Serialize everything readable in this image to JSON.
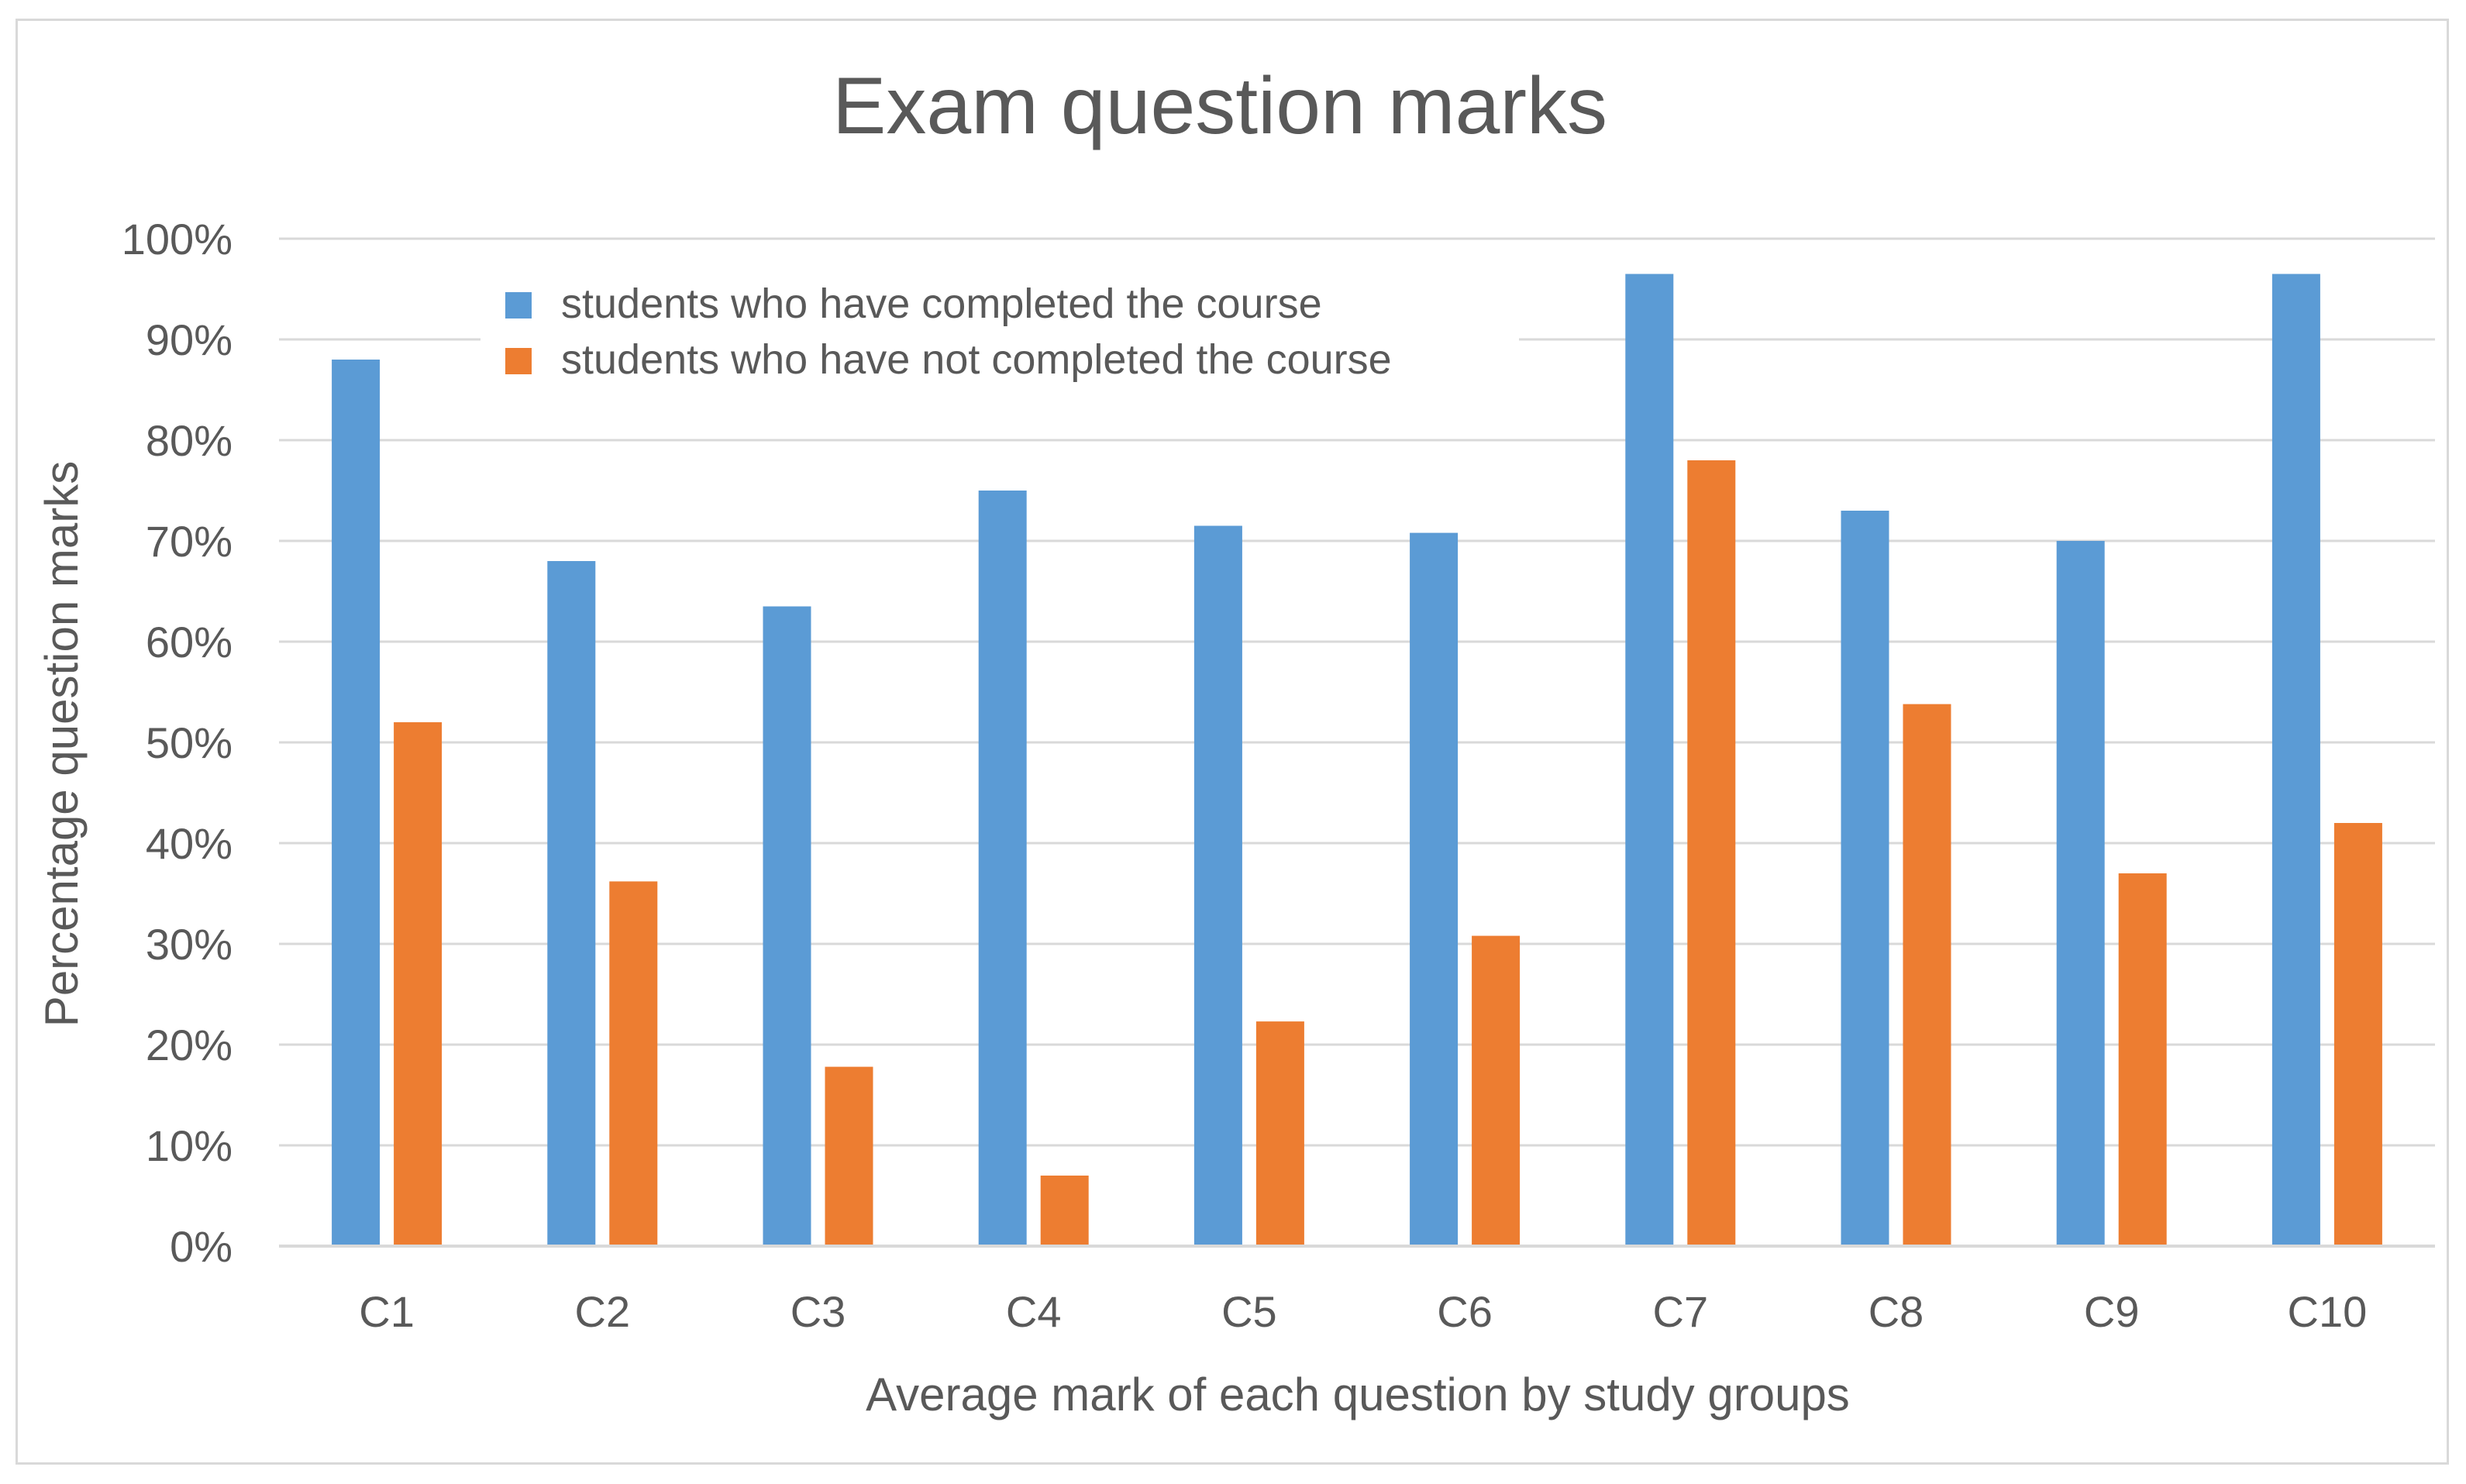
{
  "chart_data": {
    "type": "bar",
    "title": "Exam question marks",
    "xlabel": "Average mark of each question by study groups",
    "ylabel": "Percentage question marks",
    "categories": [
      "C1",
      "C2",
      "C3",
      "C4",
      "C5",
      "C6",
      "C7",
      "C8",
      "C9",
      "C10"
    ],
    "series": [
      {
        "name": "students who have completed the course",
        "color": "#5b9bd5",
        "values": [
          88,
          68,
          63.5,
          75,
          71.5,
          70.8,
          96.5,
          73,
          70,
          96.5
        ]
      },
      {
        "name": "students who have not completed the course",
        "color": "#ed7d31",
        "values": [
          52,
          36.2,
          17.8,
          7,
          22.3,
          30.8,
          78,
          53.8,
          37,
          42
        ]
      }
    ],
    "ylim": [
      0,
      100
    ],
    "yticks": [
      0,
      10,
      20,
      30,
      40,
      50,
      60,
      70,
      80,
      90,
      100
    ],
    "ytick_labels": [
      "0%",
      "10%",
      "20%",
      "30%",
      "40%",
      "50%",
      "60%",
      "70%",
      "80%",
      "90%",
      "100%"
    ],
    "grid": true,
    "legend_position": "top-left, inside plot"
  }
}
